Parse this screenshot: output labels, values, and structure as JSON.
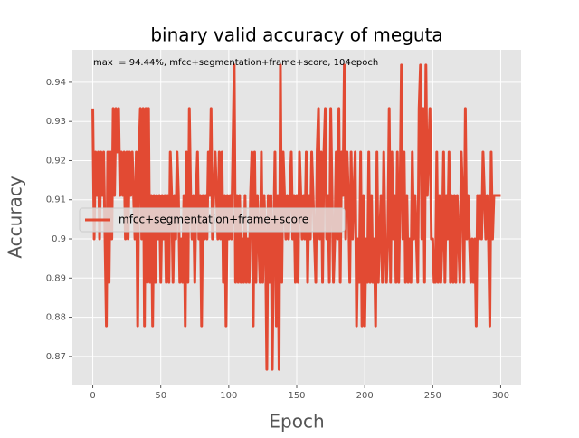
{
  "chart_data": {
    "type": "line",
    "title": "binary valid accuracy of meguta",
    "annotation": "max  = 94.44%, mfcc+segmentation+frame+score, 104epoch",
    "xlabel": "Epoch",
    "ylabel": "Accuracy",
    "xlim": [
      -15,
      315
    ],
    "ylim": [
      0.8628,
      0.9483
    ],
    "xticks": [
      0,
      50,
      100,
      150,
      200,
      250,
      300
    ],
    "yticks": [
      0.87,
      0.88,
      0.89,
      0.9,
      0.91,
      0.92,
      0.93,
      0.94
    ],
    "grid": true,
    "legend": "center left",
    "x": [
      0,
      1,
      2,
      3,
      4,
      5,
      6,
      7,
      8,
      9,
      10,
      11,
      12,
      13,
      14,
      15,
      16,
      17,
      18,
      19,
      20,
      21,
      22,
      23,
      24,
      25,
      26,
      27,
      28,
      29,
      30,
      31,
      32,
      33,
      34,
      35,
      36,
      37,
      38,
      39,
      40,
      41,
      42,
      43,
      44,
      45,
      46,
      47,
      48,
      49,
      50,
      51,
      52,
      53,
      54,
      55,
      56,
      57,
      58,
      59,
      60,
      61,
      62,
      63,
      64,
      65,
      66,
      67,
      68,
      69,
      70,
      71,
      72,
      73,
      74,
      75,
      76,
      77,
      78,
      79,
      80,
      81,
      82,
      83,
      84,
      85,
      86,
      87,
      88,
      89,
      90,
      91,
      92,
      93,
      94,
      95,
      96,
      97,
      98,
      99,
      100,
      101,
      102,
      103,
      104,
      105,
      106,
      107,
      108,
      109,
      110,
      111,
      112,
      113,
      114,
      115,
      116,
      117,
      118,
      119,
      120,
      121,
      122,
      123,
      124,
      125,
      126,
      127,
      128,
      129,
      130,
      131,
      132,
      133,
      134,
      135,
      136,
      137,
      138,
      139,
      140,
      141,
      142,
      143,
      144,
      145,
      146,
      147,
      148,
      149,
      150,
      151,
      152,
      153,
      154,
      155,
      156,
      157,
      158,
      159,
      160,
      161,
      162,
      163,
      164,
      165,
      166,
      167,
      168,
      169,
      170,
      171,
      172,
      173,
      174,
      175,
      176,
      177,
      178,
      179,
      180,
      181,
      182,
      183,
      184,
      185,
      186,
      187,
      188,
      189,
      190,
      191,
      192,
      193,
      194,
      195,
      196,
      197,
      198,
      199,
      200,
      201,
      202,
      203,
      204,
      205,
      206,
      207,
      208,
      209,
      210,
      211,
      212,
      213,
      214,
      215,
      216,
      217,
      218,
      219,
      220,
      221,
      222,
      223,
      224,
      225,
      226,
      227,
      228,
      229,
      230,
      231,
      232,
      233,
      234,
      235,
      236,
      237,
      238,
      239,
      240,
      241,
      242,
      243,
      244,
      245,
      246,
      247,
      248,
      249,
      250,
      251,
      252,
      253,
      254,
      255,
      256,
      257,
      258,
      259,
      260,
      261,
      262,
      263,
      264,
      265,
      266,
      267,
      268,
      269,
      270,
      271,
      272,
      273,
      274,
      275,
      276,
      277,
      278,
      279,
      280,
      281,
      282,
      283,
      284,
      285,
      286,
      287,
      288,
      289,
      290,
      291,
      292,
      293,
      294,
      295,
      296,
      297,
      298,
      299,
      300
    ],
    "series": [
      {
        "name": "mfcc+segmentation+frame+score",
        "color": "#e24a33",
        "values": [
          0.9333,
          0.9,
          0.9222,
          0.9111,
          0.9222,
          0.9,
          0.9222,
          0.9111,
          0.9222,
          0.9,
          0.8778,
          0.9222,
          0.8889,
          0.9222,
          0.9,
          0.9333,
          0.9111,
          0.9333,
          0.9222,
          0.9333,
          0.9111,
          0.9222,
          0.9111,
          0.9222,
          0.9,
          0.9222,
          0.9,
          0.9222,
          0.9111,
          0.9222,
          0.9111,
          0.9,
          0.9222,
          0.8778,
          0.9222,
          0.9333,
          0.9,
          0.9333,
          0.8778,
          0.9333,
          0.8889,
          0.9333,
          0.8889,
          0.9111,
          0.8778,
          0.9111,
          0.8889,
          0.9111,
          0.9,
          0.9111,
          0.8889,
          0.9111,
          0.9,
          0.9111,
          0.8889,
          0.9111,
          0.8889,
          0.9222,
          0.9111,
          0.8889,
          0.9111,
          0.9,
          0.9222,
          0.9111,
          0.8889,
          0.9,
          0.8889,
          0.9111,
          0.8778,
          0.9222,
          0.8889,
          0.9333,
          0.9111,
          0.9,
          0.9111,
          0.8889,
          0.9111,
          0.9222,
          0.9,
          0.9111,
          0.8778,
          0.9111,
          0.9,
          0.9111,
          0.9,
          0.9222,
          0.9111,
          0.9333,
          0.9,
          0.9111,
          0.9222,
          0.9111,
          0.9,
          0.9222,
          0.9,
          0.9222,
          0.8889,
          0.9111,
          0.8778,
          0.9111,
          0.9,
          0.9111,
          0.9,
          0.9222,
          0.9444,
          0.8889,
          0.9111,
          0.8889,
          0.9111,
          0.8889,
          0.9,
          0.8889,
          0.9111,
          0.8889,
          0.9,
          0.8889,
          0.9111,
          0.9222,
          0.8778,
          0.9222,
          0.8889,
          0.9111,
          0.9,
          0.8889,
          0.9222,
          0.8889,
          0.9111,
          0.9,
          0.8667,
          0.9111,
          0.8889,
          0.9111,
          0.8667,
          0.9,
          0.9222,
          0.8778,
          0.9111,
          0.8667,
          0.9444,
          0.8889,
          0.9222,
          0.9111,
          0.9,
          0.9111,
          0.9,
          0.9111,
          0.9222,
          0.9,
          0.9111,
          0.8889,
          0.9111,
          0.8889,
          0.9222,
          0.9111,
          0.9,
          0.9111,
          0.9,
          0.9222,
          0.8889,
          0.9111,
          0.9,
          0.9222,
          0.9111,
          0.9,
          0.8889,
          0.9222,
          0.9333,
          0.9,
          0.9222,
          0.8889,
          0.9222,
          0.9333,
          0.9,
          0.9111,
          0.8889,
          0.9333,
          0.9111,
          0.8889,
          0.9,
          0.9222,
          0.9,
          0.9333,
          0.8889,
          0.9222,
          0.9111,
          0.9444,
          0.9,
          0.9222,
          0.9111,
          0.8889,
          0.9222,
          0.9,
          0.9111,
          0.9222,
          0.8778,
          0.9,
          0.8889,
          0.9222,
          0.8778,
          0.9111,
          0.8778,
          0.9,
          0.8889,
          0.9222,
          0.8889,
          0.9111,
          0.8889,
          0.9,
          0.8778,
          0.9222,
          0.8889,
          0.9,
          0.9111,
          0.8889,
          0.9222,
          0.9,
          0.8889,
          0.9,
          0.9333,
          0.8889,
          0.9222,
          0.9,
          0.9111,
          0.8889,
          0.9222,
          0.8889,
          0.9111,
          0.9444,
          0.9,
          0.9222,
          0.8889,
          0.9111,
          0.8889,
          0.9,
          0.8889,
          0.9222,
          0.9,
          0.9111,
          0.9,
          0.8889,
          0.9333,
          0.9444,
          0.9,
          0.9333,
          0.8889,
          0.9444,
          0.9111,
          0.9222,
          0.9333,
          0.9,
          0.9,
          0.8889,
          0.8889,
          0.9222,
          0.8889,
          0.9111,
          0.8889,
          0.9,
          0.9222,
          0.8889,
          0.9111,
          0.9,
          0.9222,
          0.8889,
          0.9111,
          0.8889,
          0.9111,
          0.8889,
          0.9111,
          0.9,
          0.8889,
          0.9222,
          0.9111,
          0.8889,
          0.9333,
          0.9,
          0.9111,
          0.9,
          0.8889,
          0.9,
          0.8889,
          0.9,
          0.8778,
          0.9111,
          0.9,
          0.9111,
          0.9,
          0.9222,
          0.9111,
          0.9,
          0.9111,
          0.9,
          0.8778,
          0.9222,
          0.9,
          0.9111,
          0.9111,
          0.9111,
          0.9111,
          0.9111,
          0.9111
        ]
      }
    ]
  }
}
